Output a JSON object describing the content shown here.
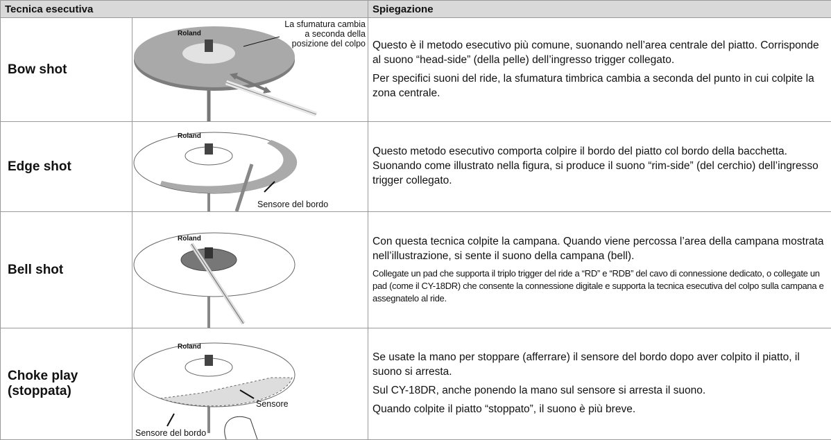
{
  "logo": "Roland",
  "table": {
    "headers": [
      "Tecnica esecutiva",
      "Spiegazione"
    ],
    "rows": [
      {
        "technique": "Bow shot",
        "labels": [
          "La sfumatura cambia",
          "a seconda della",
          "posizione del colpo"
        ],
        "paragraphs": [
          "Questo è il metodo esecutivo più comune, suonando nell’area centrale del piatto. Corrisponde al suono “head-side” (della pelle) dell’ingresso trigger collegato.",
          "Per specifici suoni del ride, la sfumatura timbrica cambia a seconda del punto in cui colpite la zona centrale."
        ]
      },
      {
        "technique": "Edge shot",
        "labels": [
          "Sensore del bordo"
        ],
        "paragraphs": [
          "Questo metodo esecutivo comporta colpire il bordo del piatto col bordo della bacchetta. Suonando come illustrato nella figura, si produce il suono “rim-side” (del cerchio) dell’ingresso trigger collegato."
        ]
      },
      {
        "technique": "Bell shot",
        "labels": [],
        "paragraphs": [
          "Con questa tecnica colpite la campana. Quando viene percossa l’area della campana mostrata nell’illustrazione, si sente il suono della campana (bell).",
          "Collegate un pad che supporta il triplo trigger del ride a “RD” e “RDB” del cavo di connessione dedicato, o collegate un pad (come il CY-18DR) che consente la connessione digitale e supporta la tecnica esecutiva del colpo sulla campana e assegnatelo al ride."
        ]
      },
      {
        "technique": "Choke play (stoppata)",
        "labels": [
          "Sensore",
          "Sensore del bordo"
        ],
        "paragraphs": [
          "Se usate la mano per stoppare (afferrare) il sensore del bordo dopo aver colpito il piatto, il suono si arresta.",
          "Sul CY-18DR, anche ponendo la mano sul sensore si arresta il suono.",
          "Quando colpite il piatto “stoppato”, il suono è più breve."
        ]
      }
    ]
  }
}
